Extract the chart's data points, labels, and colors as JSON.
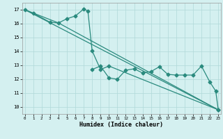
{
  "line1": {
    "x": [
      0,
      23
    ],
    "y": [
      17.0,
      9.8
    ]
  },
  "line2": {
    "x": [
      0,
      4,
      23
    ],
    "y": [
      17.0,
      16.05,
      9.8
    ]
  },
  "line3": {
    "x": [
      0,
      1,
      3,
      4,
      5,
      6,
      7,
      7.5,
      8,
      9,
      10,
      23
    ],
    "y": [
      17.0,
      16.75,
      16.1,
      16.05,
      16.35,
      16.55,
      17.05,
      16.9,
      14.05,
      12.7,
      12.95,
      9.8
    ]
  },
  "line4": {
    "x": [
      8,
      9,
      10,
      11,
      12,
      13,
      14,
      15,
      16,
      17,
      18,
      19,
      20,
      21,
      22,
      22.7,
      23
    ],
    "y": [
      12.7,
      12.95,
      12.1,
      12.0,
      12.65,
      12.75,
      12.45,
      12.55,
      12.9,
      12.35,
      12.3,
      12.3,
      12.3,
      12.95,
      11.8,
      11.15,
      9.8
    ]
  },
  "xlim": [
    -0.3,
    23.3
  ],
  "ylim": [
    9.5,
    17.5
  ],
  "xticks": [
    0,
    1,
    2,
    3,
    4,
    5,
    6,
    7,
    8,
    9,
    10,
    11,
    12,
    13,
    14,
    15,
    16,
    17,
    18,
    19,
    20,
    21,
    22,
    23
  ],
  "yticks": [
    10,
    11,
    12,
    13,
    14,
    15,
    16,
    17
  ],
  "xlabel": "Humidex (Indice chaleur)",
  "color": "#2a8a7e",
  "bg_color": "#d4f0f0",
  "grid_color": "#b0d8d8",
  "marker": "D",
  "markersize": 2.5,
  "linewidth": 0.9
}
